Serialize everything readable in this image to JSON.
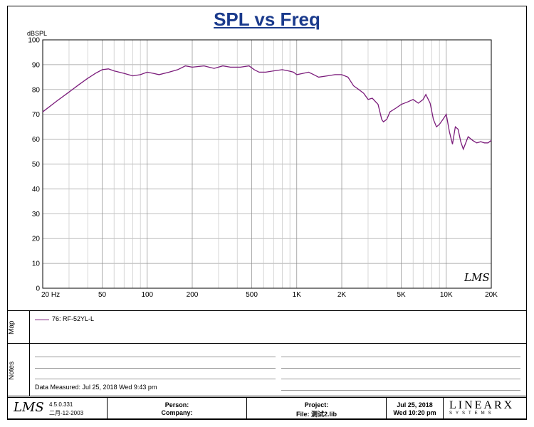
{
  "title": "SPL vs Freq",
  "chart_data": {
    "type": "line",
    "title": "SPL vs Freq",
    "ylabel": "dBSPL",
    "xlabel": "",
    "xscale": "log",
    "xlim": [
      20,
      20000
    ],
    "ylim": [
      0,
      100
    ],
    "x_tick_values": [
      20,
      50,
      100,
      200,
      500,
      1000,
      2000,
      5000,
      10000,
      20000
    ],
    "x_tick_labels": [
      "20 Hz",
      "50",
      "100",
      "200",
      "500",
      "1K",
      "2K",
      "5K",
      "10K",
      "20K"
    ],
    "y_tick_values": [
      0,
      10,
      20,
      30,
      40,
      50,
      60,
      70,
      80,
      90,
      100
    ],
    "y_tick_labels": [
      "0",
      "10",
      "20",
      "30",
      "40",
      "50",
      "60",
      "70",
      "80",
      "90",
      "100"
    ],
    "grid": true,
    "series": [
      {
        "name": "76: RF-52YL-L",
        "color": "#7b1c7b",
        "x": [
          20,
          25,
          30,
          35,
          40,
          45,
          50,
          55,
          60,
          70,
          80,
          90,
          100,
          110,
          120,
          140,
          160,
          180,
          200,
          240,
          280,
          320,
          360,
          420,
          480,
          520,
          560,
          620,
          700,
          800,
          880,
          950,
          1000,
          1100,
          1200,
          1300,
          1400,
          1600,
          1800,
          2000,
          2200,
          2400,
          2600,
          2800,
          3000,
          3200,
          3500,
          3700,
          3800,
          4000,
          4200,
          4600,
          5000,
          5500,
          6000,
          6500,
          7000,
          7300,
          7800,
          8200,
          8600,
          9000,
          9500,
          10000,
          10500,
          11000,
          11500,
          12000,
          12500,
          13000,
          14000,
          15000,
          16000,
          17000,
          18000,
          19000,
          20000
        ],
        "y": [
          71,
          75.5,
          79,
          82,
          84.5,
          86.5,
          88,
          88.3,
          87.5,
          86.5,
          85.5,
          86,
          87,
          86.5,
          86,
          87,
          88,
          89.5,
          89,
          89.5,
          88.5,
          89.5,
          89,
          89,
          89.5,
          88,
          87,
          87,
          87.5,
          88,
          87.5,
          87,
          86,
          86.5,
          87,
          86,
          85,
          85.5,
          86,
          86,
          85,
          81.5,
          80,
          78.5,
          76,
          76.5,
          74,
          68,
          67,
          68,
          71,
          72.5,
          74,
          75,
          76,
          74.5,
          76,
          78,
          74.5,
          68,
          65,
          66,
          68,
          70,
          63,
          58,
          65,
          64,
          59,
          56,
          61,
          59.5,
          58.5,
          59,
          58.5,
          58.5,
          59.5
        ]
      }
    ]
  },
  "legend": {
    "entry": "76: RF-52YL-L"
  },
  "side_labels": {
    "map": "Map",
    "notes": "Notes"
  },
  "notes": {
    "measured": "Data Measured: Jul 25, 2018  Wed  9:43 pm"
  },
  "footer": {
    "logo": "LMS",
    "version": "4.5.0.331",
    "version_date": "二月-12-2003",
    "person_label": "Person:",
    "company_label": "Company:",
    "project_label": "Project:",
    "file_label": "File: 测试2.lib",
    "date": "Jul 25, 2018",
    "time": "Wed 10:20 pm",
    "brand": "LINEARX",
    "brand_sub": "SYSTEMS"
  },
  "watermark": "LMS",
  "colors": {
    "title": "#1a3a8c",
    "curve": "#7b1c7b"
  }
}
